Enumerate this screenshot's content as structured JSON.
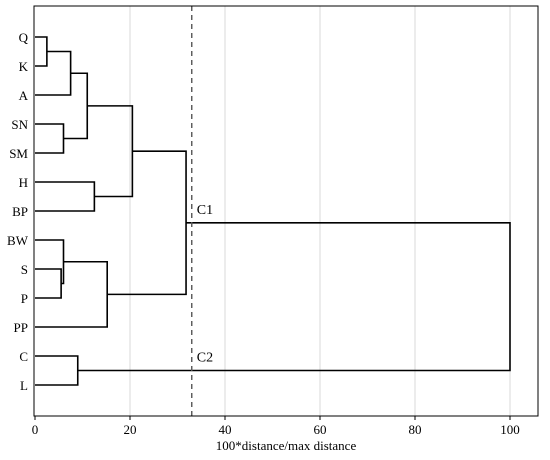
{
  "chart_data": {
    "type": "dendrogram",
    "orientation": "horizontal",
    "xlabel": "100*distance/max distance",
    "xlim": [
      0,
      100
    ],
    "xticks": [
      0,
      20,
      40,
      60,
      80,
      100
    ],
    "grid": "vertical",
    "leaves": [
      "Q",
      "K",
      "A",
      "SN",
      "SM",
      "H",
      "BP",
      "BW",
      "S",
      "P",
      "PP",
      "C",
      "L"
    ],
    "merges": [
      {
        "id": "m1",
        "children": [
          "Q",
          "K"
        ],
        "height": 2.5
      },
      {
        "id": "m2",
        "children": [
          "S",
          "P"
        ],
        "height": 5.5
      },
      {
        "id": "m3",
        "children": [
          "BW",
          "m2"
        ],
        "height": 6
      },
      {
        "id": "m4",
        "children": [
          "SN",
          "SM"
        ],
        "height": 6
      },
      {
        "id": "m5",
        "children": [
          "m1",
          "A"
        ],
        "height": 7.5
      },
      {
        "id": "m6",
        "children": [
          "C",
          "L"
        ],
        "height": 9
      },
      {
        "id": "m7",
        "children": [
          "m5",
          "m4"
        ],
        "height": 11
      },
      {
        "id": "m8",
        "children": [
          "H",
          "BP"
        ],
        "height": 12.5
      },
      {
        "id": "m9",
        "children": [
          "m3",
          "PP"
        ],
        "height": 15.2
      },
      {
        "id": "m10",
        "children": [
          "m7",
          "m8"
        ],
        "height": 20.5
      },
      {
        "id": "m11",
        "children": [
          "m10",
          "m9"
        ],
        "height": 31.8
      },
      {
        "id": "m12",
        "children": [
          "m11",
          "m6"
        ],
        "height": 100
      }
    ],
    "cut_line": {
      "value": 33,
      "style": "dashed"
    },
    "cluster_labels": [
      {
        "text": "C1",
        "merge": "m11"
      },
      {
        "text": "C2",
        "merge": "m6"
      }
    ],
    "colors": {
      "lines": "#000000",
      "grid": "#d9d9d9",
      "frame": "#000000",
      "cut_line": "#555555"
    }
  }
}
